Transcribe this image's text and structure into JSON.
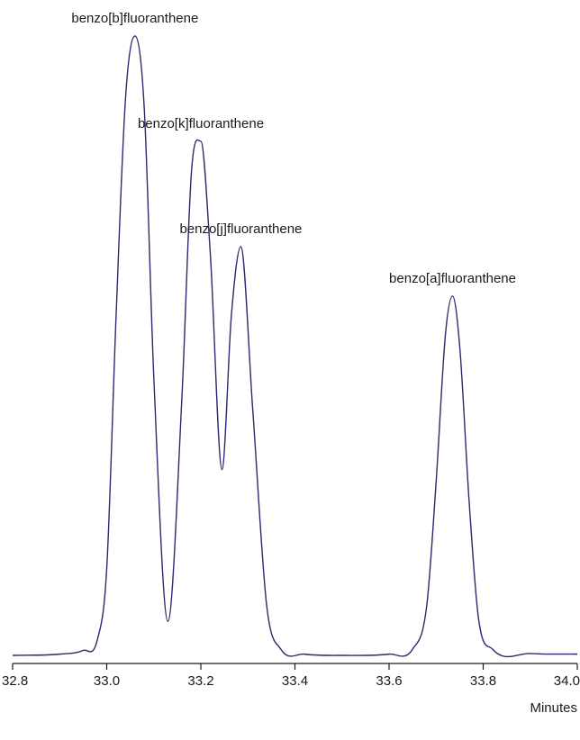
{
  "chart_data": {
    "type": "line",
    "title": "",
    "xlabel": "Minutes",
    "ylabel": "",
    "xlim": [
      32.8,
      34.0
    ],
    "ylim": [
      0,
      100
    ],
    "x_ticks": [
      "32.8",
      "33.0",
      "33.2",
      "33.4",
      "33.6",
      "33.8",
      "34.0"
    ],
    "grid": false,
    "line_color": "#2a2a6e",
    "series": [
      {
        "x": [
          32.8,
          32.9,
          32.95,
          32.98,
          33.0,
          33.02,
          33.04,
          33.06,
          33.08,
          33.1,
          33.13,
          33.16,
          33.18,
          33.2,
          33.22,
          33.245,
          33.265,
          33.285,
          33.31,
          33.34,
          33.37,
          33.42,
          33.5,
          33.6,
          33.65,
          33.68,
          33.7,
          33.72,
          33.735,
          33.75,
          33.77,
          33.79,
          33.82,
          33.9,
          34.0
        ],
        "y": [
          0,
          0.2,
          0.8,
          2.5,
          14,
          55,
          90,
          100,
          88,
          45,
          5.5,
          42,
          78,
          83,
          65,
          30,
          55,
          66,
          40,
          8,
          1,
          0.2,
          0,
          0.2,
          1,
          8,
          28,
          52,
          58,
          50,
          25,
          6,
          1,
          0.3,
          0.2
        ]
      }
    ],
    "annotations": [
      {
        "text": "benzo[b]fluoranthene",
        "x": 33.06,
        "y": 100
      },
      {
        "text": "benzo[k]fluoranthene",
        "x": 33.2,
        "y": 83
      },
      {
        "text": "benzo[j]fluoranthene",
        "x": 33.285,
        "y": 66
      },
      {
        "text": "benzo[a]fluoranthene",
        "x": 33.735,
        "y": 58
      }
    ]
  }
}
